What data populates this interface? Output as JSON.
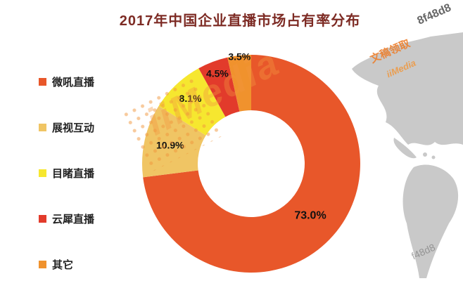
{
  "title": "2017年中国企业直播市场占有率分布",
  "chart_data": {
    "type": "pie",
    "subtype": "donut",
    "title": "2017年中国企业直播市场占有率分布",
    "legend_position": "left",
    "direction": "clockwise",
    "start_angle_deg": 0,
    "value_suffix": "%",
    "slices": [
      {
        "label": "微吼直播",
        "value": 73.0,
        "color": "#E8572A"
      },
      {
        "label": "展视互动",
        "value": 10.9,
        "color": "#F0C564"
      },
      {
        "label": "目睹直播",
        "value": 8.1,
        "color": "#F6E72F"
      },
      {
        "label": "云犀直播",
        "value": 4.5,
        "color": "#E23B2B"
      },
      {
        "label": "其它",
        "value": 3.5,
        "color": "#F0922D"
      }
    ]
  },
  "watermarks": {
    "brand": "iiMedia",
    "cjk": "文稿领取",
    "code_top_right": "8f48d8",
    "code_bottom_right": "f48d8"
  },
  "colors": {
    "title": "#7D2B24",
    "label": "#111111",
    "legend_text": "#222222",
    "map": "#C9C9C9",
    "background": "#FFFFFF"
  }
}
